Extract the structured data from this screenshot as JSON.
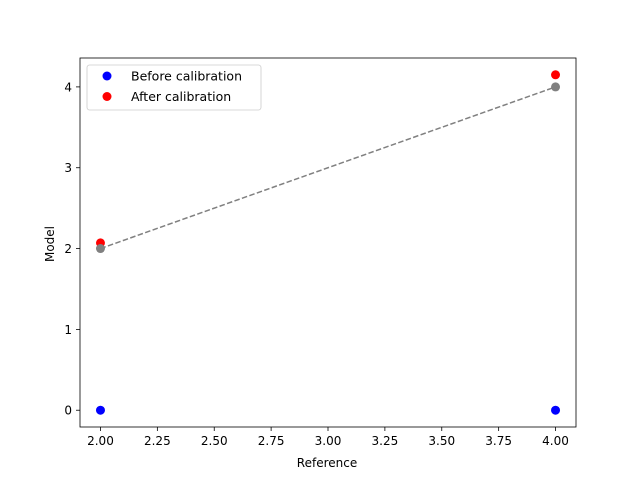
{
  "chart_data": {
    "type": "scatter",
    "xlabel": "Reference",
    "ylabel": "Model",
    "xlim": [
      1.91,
      4.09
    ],
    "ylim": [
      -0.2075,
      4.3575
    ],
    "xticks": [
      "2.00",
      "2.25",
      "2.50",
      "2.75",
      "3.00",
      "3.25",
      "3.50",
      "3.75",
      "4.00"
    ],
    "yticks": [
      "0",
      "1",
      "2",
      "3",
      "4"
    ],
    "grid": false,
    "legend_position": "upper-left",
    "series": [
      {
        "name": "Before calibration",
        "color": "#0000ff",
        "marker": "circle",
        "points": [
          {
            "x": 2.0,
            "y": 0.0
          },
          {
            "x": 4.0,
            "y": 0.0
          }
        ]
      },
      {
        "name": "After calibration",
        "color": "#ff0000",
        "marker": "circle",
        "points": [
          {
            "x": 2.0,
            "y": 2.07
          },
          {
            "x": 4.0,
            "y": 4.15
          }
        ]
      }
    ],
    "reference_points": {
      "color": "#808080",
      "points": [
        {
          "x": 2.0,
          "y": 2.0
        },
        {
          "x": 4.0,
          "y": 4.0
        }
      ]
    },
    "reference_line": {
      "style": "dashed",
      "color": "#808080",
      "points": [
        {
          "x": 2.0,
          "y": 2.0
        },
        {
          "x": 4.0,
          "y": 4.0
        }
      ]
    }
  }
}
